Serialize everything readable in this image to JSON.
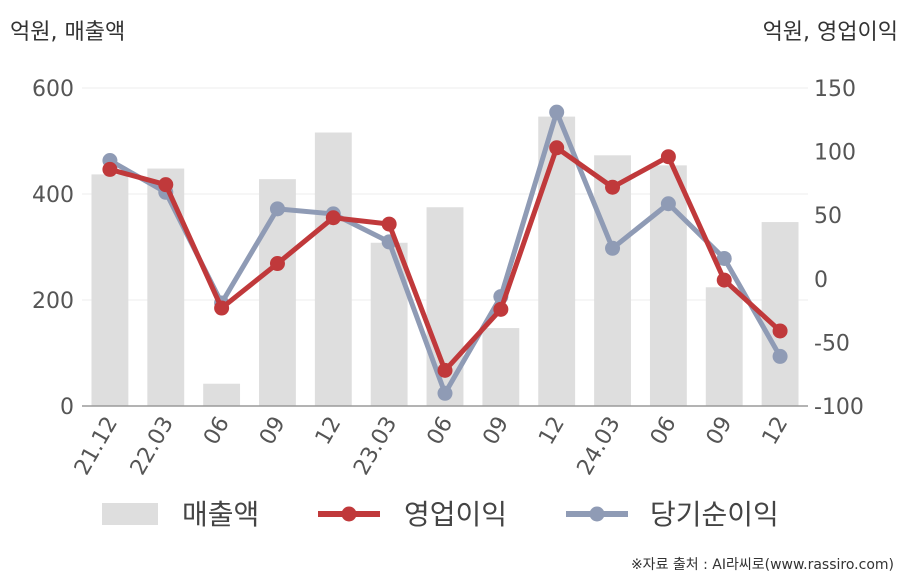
{
  "chart_data": {
    "type": "bar+line",
    "left_axis_unit": "억원, 매출액",
    "right_axis_unit": "억원, 영업이익",
    "categories": [
      "21.12",
      "22.03",
      "06",
      "09",
      "12",
      "23.03",
      "06",
      "09",
      "12",
      "24.03",
      "06",
      "09",
      "12"
    ],
    "left_axis": {
      "ylim": [
        0,
        600
      ],
      "ticks": [
        "0",
        "200",
        "400",
        "600"
      ]
    },
    "right_axis": {
      "ylim": [
        -100,
        150
      ],
      "ticks": [
        "-100",
        "-50",
        "0",
        "50",
        "100",
        "150"
      ]
    },
    "grid": true,
    "legend_position": "bottom",
    "series": [
      {
        "name": "매출액",
        "type": "bar",
        "axis": "left",
        "color": "#dedede",
        "values": [
          437,
          448,
          42,
          428,
          516,
          308,
          375,
          147,
          546,
          473,
          454,
          224,
          347
        ]
      },
      {
        "name": "영업이익",
        "type": "line",
        "axis": "right",
        "color": "#c0393b",
        "values": [
          86,
          74,
          -23,
          12,
          48,
          43,
          -72,
          -24,
          103,
          72,
          96,
          -1,
          -41
        ]
      },
      {
        "name": "당기순이익",
        "type": "line",
        "axis": "right",
        "color": "#8f9bb5",
        "values": [
          93,
          68,
          -19,
          55,
          51,
          29,
          -90,
          -14,
          131,
          24,
          59,
          16,
          -61
        ]
      }
    ]
  },
  "footer": {
    "source": "※자료 출처 : AI라씨로(www.rassiro.com)"
  }
}
